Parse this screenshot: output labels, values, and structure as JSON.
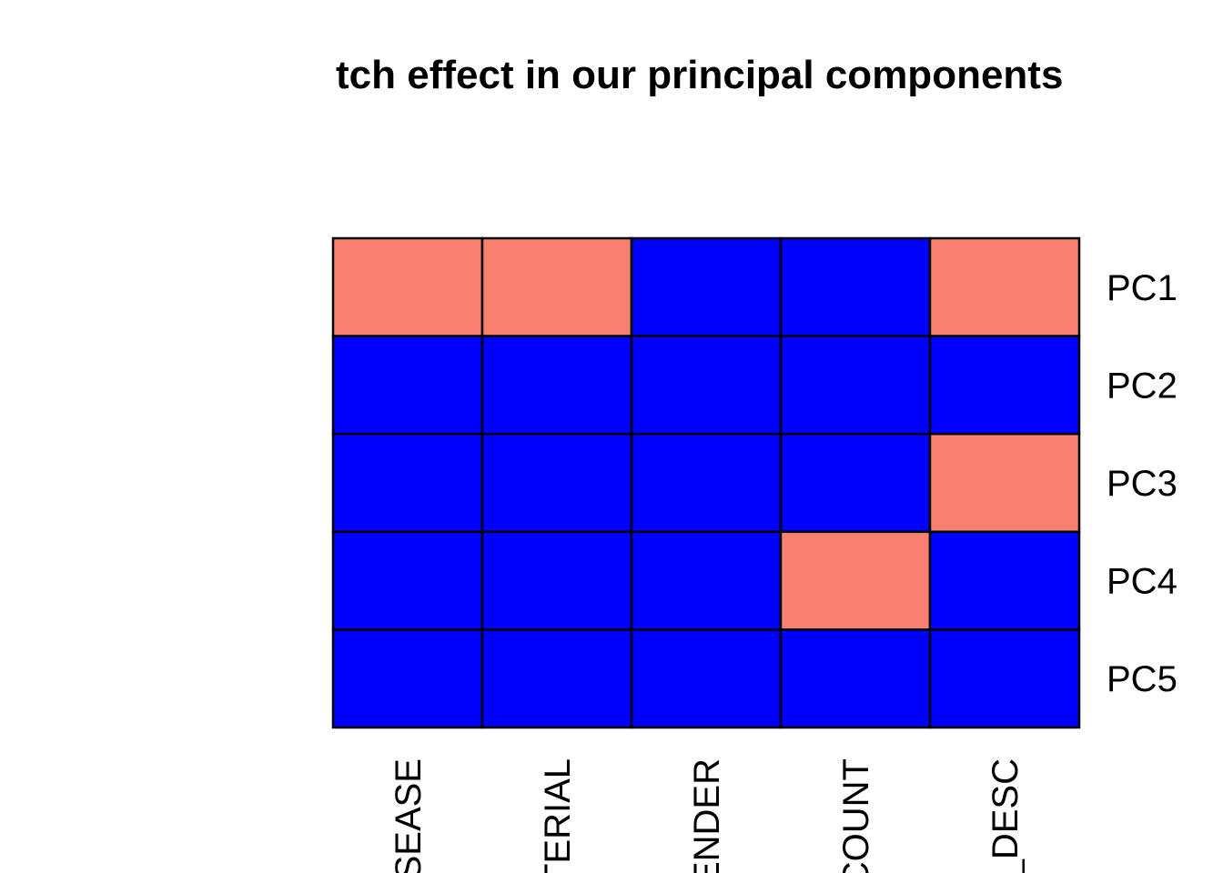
{
  "chart_data": {
    "type": "heatmap",
    "title": "tch effect in our principal components",
    "columns": [
      "SEASE",
      "TERIAL",
      "ENDER",
      "COUNT",
      "_DESC"
    ],
    "rows": [
      "PC1",
      "PC2",
      "PC3",
      "PC4",
      "PC5"
    ],
    "values": [
      [
        1,
        1,
        0,
        0,
        1
      ],
      [
        0,
        0,
        0,
        0,
        0
      ],
      [
        0,
        0,
        0,
        0,
        1
      ],
      [
        0,
        0,
        0,
        1,
        0
      ],
      [
        0,
        0,
        0,
        0,
        0
      ]
    ],
    "colors": {
      "1": "#FA8072",
      "0": "#0000FF"
    },
    "grid": true,
    "legend": "none"
  }
}
